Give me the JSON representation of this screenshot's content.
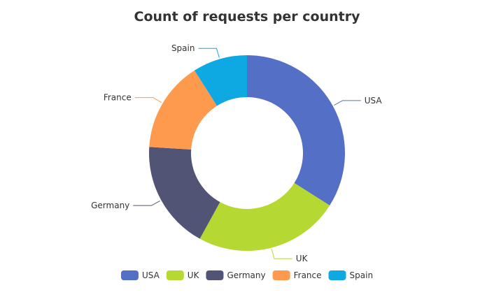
{
  "chart_data": {
    "type": "pie",
    "title": "Count of requests per country",
    "donut": true,
    "categories": [
      "USA",
      "UK",
      "Germany",
      "France",
      "Spain"
    ],
    "values": [
      34,
      24,
      18,
      15,
      9
    ],
    "colors": [
      "#5470c6",
      "#b5d833",
      "#515474",
      "#fe9a4d",
      "#0ea8e2"
    ],
    "legend": {
      "placement": "bottom",
      "entries": [
        "USA",
        "UK",
        "Germany",
        "France",
        "Spain"
      ]
    }
  }
}
